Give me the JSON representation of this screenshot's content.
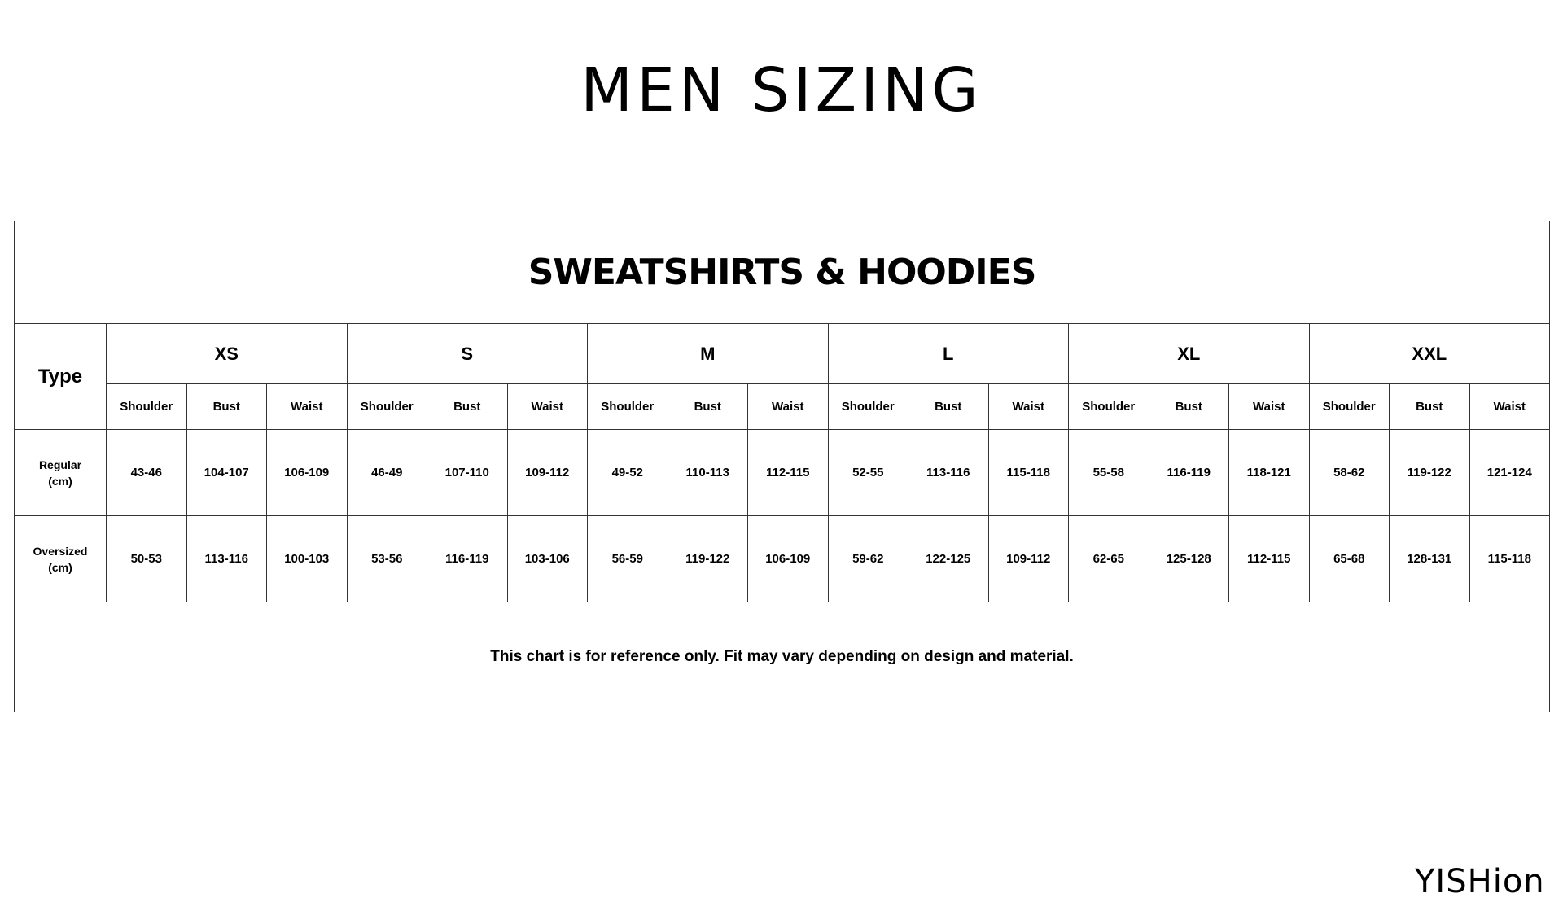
{
  "title": "MEN SIZING",
  "section_title": "SWEATSHIRTS & HOODIES",
  "type_header": "Type",
  "sizes": [
    "XS",
    "S",
    "M",
    "L",
    "XL",
    "XXL"
  ],
  "measures": [
    "Shoulder",
    "Bust",
    "Waist"
  ],
  "rows": [
    {
      "label_line1": "Regular",
      "label_line2": "(cm)",
      "values": [
        "43-46",
        "104-107",
        "106-109",
        "46-49",
        "107-110",
        "109-112",
        "49-52",
        "110-113",
        "112-115",
        "52-55",
        "113-116",
        "115-118",
        "55-58",
        "116-119",
        "118-121",
        "58-62",
        "119-122",
        "121-124"
      ]
    },
    {
      "label_line1": "Oversized",
      "label_line2": "(cm)",
      "values": [
        "50-53",
        "113-116",
        "100-103",
        "53-56",
        "116-119",
        "103-106",
        "56-59",
        "119-122",
        "106-109",
        "59-62",
        "122-125",
        "109-112",
        "62-65",
        "125-128",
        "112-115",
        "65-68",
        "128-131",
        "115-118"
      ]
    }
  ],
  "footnote": "This chart is for reference only. Fit may vary depending on design and material.",
  "logo": "YISHion"
}
